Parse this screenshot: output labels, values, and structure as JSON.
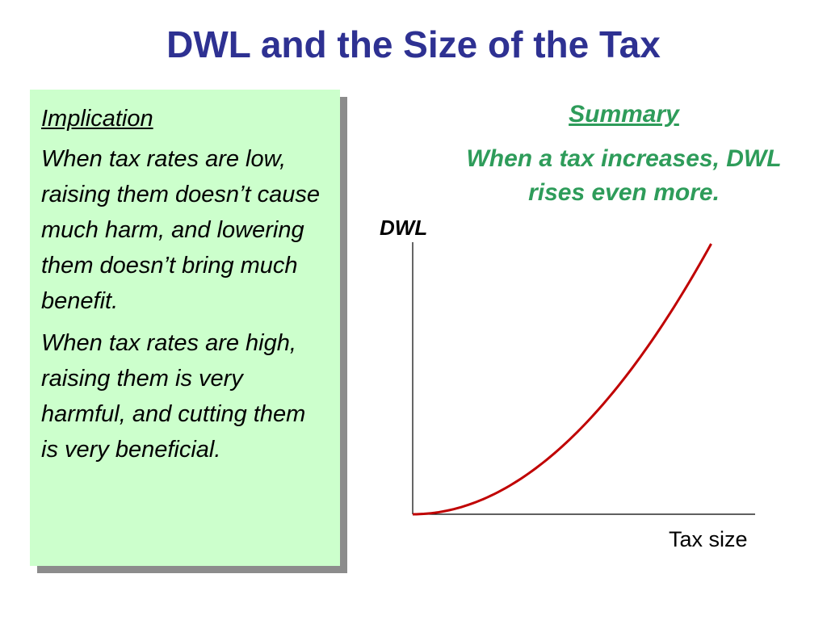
{
  "title": "DWL and the Size of the Tax",
  "implication": {
    "heading": "Implication",
    "paragraphs": [
      "When tax rates are low, raising them doesn’t cause much harm, and lowering them doesn’t bring much benefit.",
      "When tax rates are high, raising them is very harmful, and cutting them is very beneficial."
    ]
  },
  "summary": {
    "heading": "Summary",
    "text": "When a tax increases, DWL rises even more."
  },
  "colors": {
    "title": "#2e3192",
    "summary": "#2e9c5a",
    "box_fill": "#ccffcc",
    "curve": "#c00000",
    "axis": "#000000"
  },
  "chart_data": {
    "type": "line",
    "xlabel": "Tax size",
    "ylabel": "DWL",
    "grid": false,
    "xlim": [
      0,
      1
    ],
    "ylim": [
      0,
      1
    ],
    "series": [
      {
        "shape": "quadratic (DWL grows with the square of the tax)",
        "x": [
          0,
          0.1,
          0.2,
          0.3,
          0.4,
          0.5,
          0.6,
          0.7,
          0.8,
          0.88
        ],
        "y": [
          0,
          0.013,
          0.052,
          0.116,
          0.207,
          0.323,
          0.465,
          0.633,
          0.826,
          1.0
        ]
      }
    ]
  }
}
